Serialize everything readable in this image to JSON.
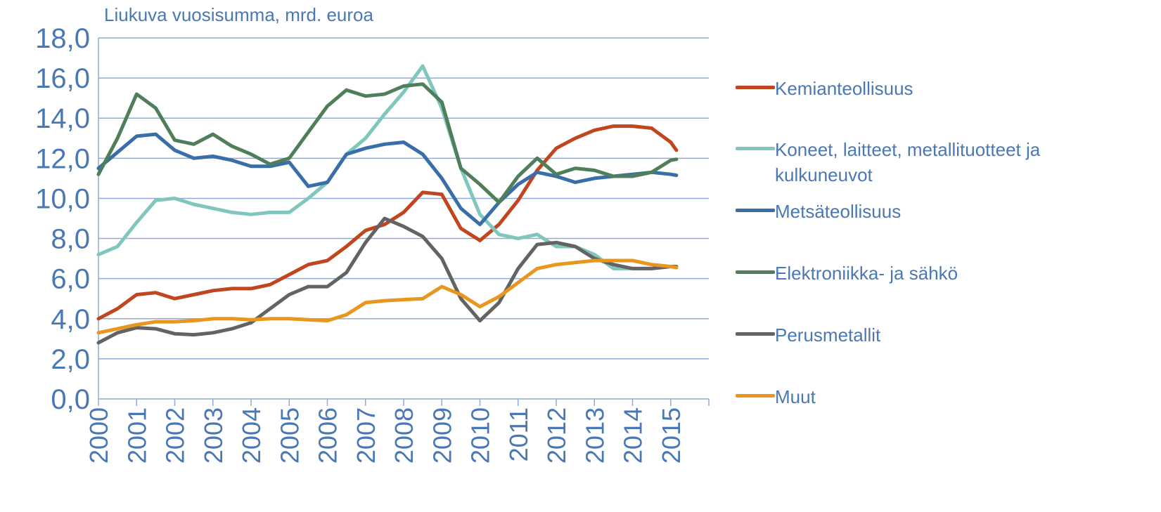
{
  "chart_data": {
    "type": "line",
    "subtitle": "Liukuva vuosisumma, mrd. euroa",
    "x": [
      2000,
      2000.5,
      2001,
      2001.5,
      2002,
      2002.5,
      2003,
      2003.5,
      2004,
      2004.5,
      2005,
      2005.5,
      2006,
      2006.5,
      2007,
      2007.5,
      2008,
      2008.5,
      2009,
      2009.5,
      2010,
      2010.5,
      2011,
      2011.5,
      2012,
      2012.5,
      2013,
      2013.5,
      2014,
      2014.5,
      2015,
      2015.15
    ],
    "xlim": [
      2000,
      2016
    ],
    "xticks": [
      2000,
      2001,
      2002,
      2003,
      2004,
      2005,
      2006,
      2007,
      2008,
      2009,
      2010,
      2011,
      2012,
      2013,
      2014,
      2015
    ],
    "ylim": [
      0,
      18
    ],
    "yticks": [
      {
        "value": 0,
        "label": "0,0"
      },
      {
        "value": 2,
        "label": "2,0"
      },
      {
        "value": 4,
        "label": "4,0"
      },
      {
        "value": 6,
        "label": "6,0"
      },
      {
        "value": 8,
        "label": "8,0"
      },
      {
        "value": 10,
        "label": "10,0"
      },
      {
        "value": 12,
        "label": "12,0"
      },
      {
        "value": 14,
        "label": "14,0"
      },
      {
        "value": 16,
        "label": "16,0"
      },
      {
        "value": 18,
        "label": "18,0"
      }
    ],
    "grid": true,
    "legend": "right",
    "series": [
      {
        "name": "Kemianteollisuus",
        "color": "#c0461f",
        "values": [
          4.0,
          4.5,
          5.2,
          5.3,
          5.0,
          5.2,
          5.4,
          5.5,
          5.5,
          5.7,
          6.2,
          6.7,
          6.9,
          7.6,
          8.4,
          8.7,
          9.3,
          10.3,
          10.2,
          8.5,
          7.9,
          8.7,
          9.9,
          11.4,
          12.5,
          13.0,
          13.4,
          13.6,
          13.6,
          13.5,
          12.8,
          12.4
        ]
      },
      {
        "name": "Koneet, laitteet, metallituotteet ja kulkuneuvot",
        "color": "#7fc6bf",
        "values": [
          7.2,
          7.6,
          8.8,
          9.9,
          10.0,
          9.7,
          9.5,
          9.3,
          9.2,
          9.3,
          9.3,
          10.0,
          10.8,
          12.2,
          13.0,
          14.2,
          15.3,
          16.6,
          14.5,
          11.5,
          9.2,
          8.2,
          8.0,
          8.2,
          7.6,
          7.6,
          7.2,
          6.5,
          6.5,
          6.5,
          6.6,
          6.6
        ]
      },
      {
        "name": "Metsäteollisuus",
        "color": "#3a6ea8",
        "values": [
          11.5,
          12.3,
          13.1,
          13.2,
          12.4,
          12.0,
          12.1,
          11.9,
          11.6,
          11.6,
          11.8,
          10.6,
          10.8,
          12.2,
          12.5,
          12.7,
          12.8,
          12.2,
          11.0,
          9.5,
          8.7,
          9.8,
          10.7,
          11.3,
          11.1,
          10.8,
          11.0,
          11.1,
          11.2,
          11.3,
          11.2,
          11.15
        ]
      },
      {
        "name": "Elektroniikka- ja sähkö",
        "color": "#4f7f5a",
        "values": [
          11.2,
          13.0,
          15.2,
          14.5,
          12.9,
          12.7,
          13.2,
          12.6,
          12.2,
          11.7,
          12.0,
          13.3,
          14.6,
          15.4,
          15.1,
          15.2,
          15.6,
          15.7,
          14.8,
          11.5,
          10.7,
          9.8,
          11.1,
          12.0,
          11.2,
          11.5,
          11.4,
          11.1,
          11.1,
          11.3,
          11.9,
          11.95
        ]
      },
      {
        "name": "Perusmetallit",
        "color": "#636363",
        "values": [
          2.8,
          3.3,
          3.55,
          3.5,
          3.25,
          3.2,
          3.3,
          3.5,
          3.8,
          4.5,
          5.2,
          5.6,
          5.6,
          6.3,
          7.8,
          9.0,
          8.6,
          8.1,
          7.0,
          5.0,
          3.9,
          4.8,
          6.5,
          7.7,
          7.8,
          7.6,
          7.0,
          6.7,
          6.5,
          6.5,
          6.6,
          6.6
        ]
      },
      {
        "name": "Muut",
        "color": "#e8961e",
        "values": [
          3.3,
          3.5,
          3.7,
          3.85,
          3.85,
          3.9,
          4.0,
          4.0,
          3.95,
          4.0,
          4.0,
          3.95,
          3.9,
          4.2,
          4.8,
          4.9,
          4.95,
          5.0,
          5.6,
          5.2,
          4.6,
          5.1,
          5.8,
          6.5,
          6.7,
          6.8,
          6.9,
          6.9,
          6.9,
          6.7,
          6.6,
          6.55
        ]
      }
    ]
  }
}
